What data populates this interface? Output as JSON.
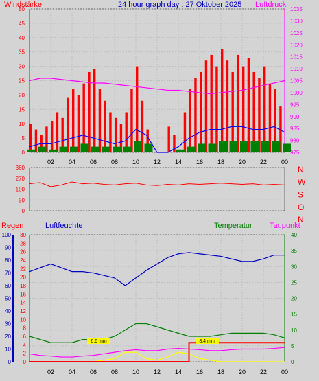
{
  "chart_data": [
    {
      "type": "line",
      "title": "24 hour graph day : 27 Oktober 2025",
      "left_label": "Windstärke",
      "right_label": "Luftdruck",
      "x_ticks": [
        "02",
        "04",
        "06",
        "08",
        "10",
        "12",
        "14",
        "16",
        "18",
        "20",
        "22",
        "00"
      ],
      "y_left_ticks": [
        "0",
        "5",
        "10",
        "15",
        "20",
        "25",
        "30",
        "35",
        "40",
        "45",
        "50"
      ],
      "y_right_ticks": [
        "975",
        "980",
        "985",
        "990",
        "995",
        "1000",
        "1005",
        "1010",
        "1015",
        "1020",
        "1025",
        "1030",
        "1035"
      ],
      "ylim_left": [
        0,
        50
      ],
      "ylim_right": [
        975,
        1035
      ],
      "grid": true,
      "colors": {
        "gust": "#ff0000",
        "wind": "#0000ff",
        "calm": "#008000",
        "pressure": "#ff00ff"
      },
      "series": [
        {
          "name": "Luftdruck",
          "axis": "right",
          "x": [
            0,
            1,
            2,
            3,
            4,
            5,
            6,
            7,
            8,
            9,
            10,
            11,
            12,
            13,
            14,
            15,
            16,
            17,
            18,
            19,
            20,
            21,
            22,
            23,
            24
          ],
          "values": [
            1005,
            1006,
            1006,
            1005.5,
            1005,
            1004.5,
            1004,
            1004,
            1003.5,
            1003,
            1002.5,
            1002,
            1001.5,
            1001,
            1001,
            1000.5,
            1000,
            999.5,
            1000,
            1000.5,
            1001,
            1002,
            1003,
            1004,
            1005
          ]
        },
        {
          "type": "bar",
          "x": [
            0,
            0.5,
            1,
            1.5,
            2,
            2.5,
            3,
            3.5,
            4,
            4.5,
            5,
            5.5,
            6,
            6.5,
            7,
            7.5,
            8,
            8.5,
            9,
            9.5,
            10,
            10.5,
            11,
            11.5,
            12,
            12.5,
            13,
            13.5,
            14,
            14.5,
            15,
            15.5,
            16,
            16.5,
            17,
            17.5,
            18,
            18.5,
            19,
            19.5,
            20,
            20.5,
            21,
            21.5,
            22,
            22.5,
            23,
            23.5
          ],
          "values": [
            10,
            8,
            6,
            9,
            11,
            14,
            12,
            19,
            22,
            20,
            24,
            28,
            29,
            22,
            18,
            14,
            12,
            10,
            14,
            22,
            30,
            18,
            8,
            0,
            0,
            0,
            9,
            6,
            0,
            14,
            22,
            26,
            28,
            32,
            34,
            30,
            36,
            32,
            28,
            34,
            30,
            33,
            28,
            26,
            30,
            24,
            22,
            16
          ]
        },
        {
          "x": [
            0,
            1,
            2,
            3,
            4,
            5,
            6,
            7,
            8,
            9,
            10,
            11,
            12,
            13,
            14,
            15,
            16,
            17,
            18,
            19,
            20,
            21,
            22,
            23,
            24
          ],
          "values": [
            2,
            3,
            3,
            4,
            5,
            6,
            5,
            4,
            3,
            4,
            8,
            6,
            0,
            0,
            2,
            5,
            7,
            8,
            8,
            9,
            9,
            8,
            8,
            9,
            7
          ]
        },
        {
          "type": "bar",
          "x": [
            0,
            1,
            2,
            3,
            4,
            5,
            6,
            7,
            8,
            9,
            10,
            11,
            12,
            13,
            14,
            15,
            16,
            17,
            18,
            19,
            20,
            21,
            22,
            23,
            24
          ],
          "values": [
            1,
            2,
            1,
            2,
            2,
            3,
            2,
            2,
            2,
            2,
            4,
            3,
            0,
            0,
            1,
            2,
            3,
            3,
            4,
            4,
            4,
            4,
            4,
            4,
            3
          ]
        }
      ]
    },
    {
      "type": "line",
      "y_ticks": [
        "360",
        "270",
        "180",
        "90",
        "0"
      ],
      "ylim": [
        0,
        360
      ],
      "compass_labels": [
        "N",
        "W",
        "S",
        "O",
        "N"
      ],
      "series": [
        {
          "x": [
            0,
            1,
            2,
            3,
            4,
            5,
            6,
            7,
            8,
            9,
            10,
            11,
            12,
            13,
            14,
            15,
            16,
            17,
            18,
            19,
            20,
            21,
            22,
            23,
            24
          ],
          "values": [
            225,
            235,
            200,
            215,
            240,
            225,
            230,
            220,
            215,
            225,
            230,
            215,
            210,
            220,
            215,
            225,
            220,
            225,
            230,
            225,
            220,
            225,
            215,
            220,
            215
          ]
        }
      ]
    },
    {
      "type": "line",
      "left_label": "Regen",
      "label_2": "Luftfeuchte",
      "label_3": "Temperatur",
      "label_4": "Taupunkt",
      "y_hum_ticks": [
        "0",
        "10",
        "20",
        "30",
        "40",
        "50",
        "60",
        "70",
        "80",
        "90",
        "100"
      ],
      "y_mid_ticks": [
        "0",
        "2",
        "4",
        "6",
        "8",
        "10",
        "12",
        "14",
        "16",
        "18",
        "20",
        "22",
        "24",
        "26",
        "28",
        "30"
      ],
      "y_right_ticks": [
        "0",
        "5",
        "10",
        "15",
        "20",
        "25",
        "30",
        "35",
        "40"
      ],
      "ylim_humidity": [
        0,
        100
      ],
      "ylim_right": [
        0,
        40
      ],
      "annotation_1": "6.6 mm",
      "annotation_2": "8.4 mm",
      "series": [
        {
          "x": [
            0,
            1,
            2,
            3,
            4,
            5,
            6,
            7,
            8,
            9,
            10,
            11,
            12,
            13,
            14,
            15,
            16,
            17,
            18,
            19,
            20,
            21,
            22,
            23,
            24
          ],
          "values": [
            71,
            74,
            77,
            74,
            71,
            71,
            70,
            68,
            66,
            60,
            66,
            72,
            77,
            82,
            85,
            86,
            85,
            84,
            83,
            81,
            79,
            79,
            81,
            84,
            84
          ]
        },
        {
          "x": [
            0,
            1,
            2,
            3,
            4,
            5,
            6,
            7,
            8,
            9,
            10,
            11,
            12,
            13,
            14,
            15,
            16,
            17,
            18,
            19,
            20,
            21,
            22,
            23,
            24
          ],
          "values": [
            8,
            7,
            6,
            6,
            6,
            7,
            7,
            7,
            8,
            10,
            12,
            12,
            11,
            10,
            9,
            8,
            8,
            8,
            8.5,
            9,
            9,
            9,
            9,
            8.5,
            7.5
          ]
        },
        {
          "x": [
            0,
            1,
            2,
            3,
            4,
            5,
            6,
            7,
            8,
            9,
            10,
            11,
            12,
            13,
            14,
            15,
            16,
            17,
            18,
            19,
            20,
            21,
            22,
            23,
            24
          ],
          "values": [
            2.5,
            2,
            1.8,
            1.5,
            1.5,
            1.8,
            2,
            2.5,
            3,
            3.5,
            3.8,
            3.5,
            3.5,
            4,
            4.2,
            4,
            3.8,
            3.5,
            3.5,
            3.8,
            4,
            4,
            4,
            4.2,
            4.5
          ]
        },
        {
          "x": [
            0,
            1,
            2,
            3,
            4,
            5,
            6,
            7,
            8,
            9,
            10,
            11,
            12,
            13,
            14,
            15,
            16,
            17,
            18,
            19,
            20,
            21,
            22,
            23,
            24
          ],
          "values": [
            0,
            0,
            0,
            0,
            0,
            0,
            0,
            0.5,
            1,
            3,
            3,
            1,
            0.5,
            1.5,
            3,
            2.5,
            1,
            0.5,
            0,
            0,
            0,
            0,
            0,
            0,
            0
          ]
        },
        {
          "type": "step",
          "x": [
            0,
            1,
            2,
            3,
            4,
            5,
            6,
            7,
            8,
            9,
            10,
            11,
            12,
            13,
            14,
            15,
            16,
            17,
            18,
            19,
            20,
            21,
            22,
            23,
            24
          ],
          "values": [
            0,
            0,
            0,
            0,
            0,
            0,
            0,
            0,
            0,
            0,
            0,
            0,
            0,
            0,
            0,
            6,
            6,
            6,
            6,
            6,
            6,
            6,
            6,
            6,
            6
          ]
        }
      ]
    }
  ]
}
